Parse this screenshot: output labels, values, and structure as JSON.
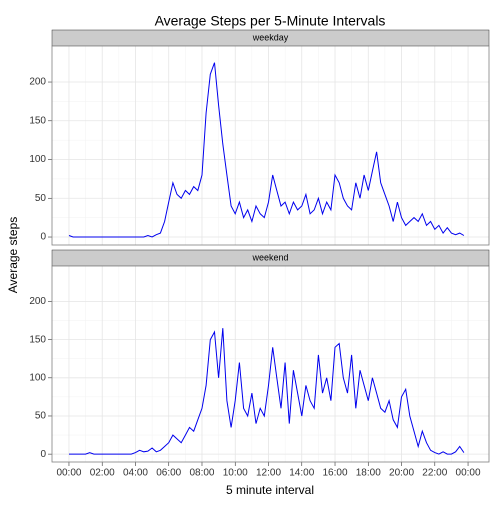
{
  "chart_data": {
    "type": "line",
    "title": "Average Steps per 5-Minute Intervals",
    "xlabel": "5 minute interval",
    "ylabel": "Average steps",
    "x": [
      0,
      0.25,
      0.5,
      0.75,
      1,
      1.25,
      1.5,
      1.75,
      2,
      2.25,
      2.5,
      2.75,
      3,
      3.25,
      3.5,
      3.75,
      4,
      4.25,
      4.5,
      4.75,
      5,
      5.25,
      5.5,
      5.75,
      6,
      6.25,
      6.5,
      6.75,
      7,
      7.25,
      7.5,
      7.75,
      8,
      8.25,
      8.5,
      8.75,
      9,
      9.25,
      9.5,
      9.75,
      10,
      10.25,
      10.5,
      10.75,
      11,
      11.25,
      11.5,
      11.75,
      12,
      12.25,
      12.5,
      12.75,
      13,
      13.25,
      13.5,
      13.75,
      14,
      14.25,
      14.5,
      14.75,
      15,
      15.25,
      15.5,
      15.75,
      16,
      16.25,
      16.5,
      16.75,
      17,
      17.25,
      17.5,
      17.75,
      18,
      18.25,
      18.5,
      18.75,
      19,
      19.25,
      19.5,
      19.75,
      20,
      20.25,
      20.5,
      20.75,
      21,
      21.25,
      21.5,
      21.75,
      22,
      22.25,
      22.5,
      22.75,
      23,
      23.25,
      23.5,
      23.75
    ],
    "xlim": [
      -1.02,
      25.26
    ],
    "xticks": [
      {
        "value": 0,
        "label": "00:00"
      },
      {
        "value": 2,
        "label": "02:00"
      },
      {
        "value": 4,
        "label": "04:00"
      },
      {
        "value": 6,
        "label": "06:00"
      },
      {
        "value": 8,
        "label": "08:00"
      },
      {
        "value": 10,
        "label": "10:00"
      },
      {
        "value": 12,
        "label": "12:00"
      },
      {
        "value": 14,
        "label": "14:00"
      },
      {
        "value": 16,
        "label": "16:00"
      },
      {
        "value": 18,
        "label": "18:00"
      },
      {
        "value": 20,
        "label": "20:00"
      },
      {
        "value": 22,
        "label": "22:00"
      },
      {
        "value": 24,
        "label": "00:00"
      }
    ],
    "ylim": [
      -10.3,
      246.5
    ],
    "yticks": [
      0,
      50,
      100,
      150,
      200
    ],
    "grid": true,
    "series": [
      {
        "name": "weekday",
        "color": "#0000ee",
        "values": [
          2,
          0,
          0,
          0,
          0,
          0,
          0,
          0,
          0,
          0,
          0,
          0,
          0,
          0,
          0,
          0,
          0,
          0,
          0,
          2,
          0,
          3,
          5,
          20,
          45,
          70,
          55,
          50,
          60,
          55,
          65,
          60,
          80,
          160,
          210,
          225,
          170,
          120,
          80,
          40,
          30,
          45,
          25,
          35,
          20,
          40,
          30,
          25,
          45,
          80,
          60,
          40,
          45,
          30,
          45,
          35,
          40,
          55,
          30,
          35,
          50,
          30,
          45,
          35,
          80,
          70,
          50,
          40,
          35,
          70,
          50,
          80,
          60,
          85,
          110,
          70,
          55,
          40,
          20,
          45,
          25,
          15,
          20,
          25,
          20,
          30,
          15,
          20,
          10,
          15,
          5,
          12,
          5,
          3,
          5,
          2
        ]
      },
      {
        "name": "weekend",
        "color": "#0000ee",
        "values": [
          0,
          0,
          0,
          0,
          0,
          2,
          0,
          0,
          0,
          0,
          0,
          0,
          0,
          0,
          0,
          0,
          2,
          5,
          3,
          4,
          8,
          3,
          5,
          10,
          15,
          25,
          20,
          15,
          25,
          35,
          30,
          45,
          60,
          90,
          150,
          160,
          100,
          165,
          70,
          35,
          70,
          120,
          60,
          50,
          80,
          40,
          60,
          50,
          90,
          140,
          100,
          60,
          120,
          40,
          110,
          80,
          50,
          90,
          70,
          60,
          130,
          80,
          100,
          70,
          140,
          145,
          100,
          80,
          130,
          60,
          110,
          90,
          70,
          100,
          80,
          60,
          55,
          70,
          45,
          35,
          75,
          85,
          50,
          30,
          10,
          30,
          15,
          5,
          2,
          0,
          3,
          0,
          0,
          3,
          10,
          2
        ]
      }
    ]
  }
}
